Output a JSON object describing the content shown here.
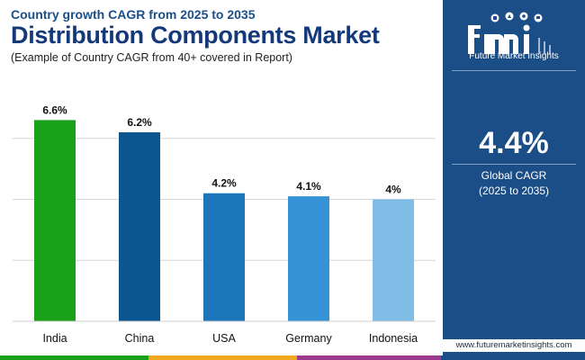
{
  "header": {
    "subtitle": "Country growth CAGR from 2025 to 2035",
    "title": "Distribution Components Market",
    "note": "(Example of Country CAGR from 40+ covered in Report)"
  },
  "chart_data": {
    "type": "bar",
    "categories": [
      "India",
      "China",
      "USA",
      "Germany",
      "Indonesia"
    ],
    "values": [
      6.6,
      6.2,
      4.2,
      4.1,
      4.0
    ],
    "data_labels": [
      "6.6%",
      "6.2%",
      "4.2%",
      "4.1%",
      "4%"
    ],
    "bar_colors": [
      "#1aa11a",
      "#0b5591",
      "#1b75b8",
      "#3592d5",
      "#80bde6"
    ],
    "title": "Distribution Components Market",
    "xlabel": "",
    "ylabel": "",
    "ylim": [
      0,
      8
    ],
    "grid": true,
    "unit": "%"
  },
  "sidebar": {
    "brand": "Future Market Insights",
    "brand_mark": "fmi",
    "cagr_value": "4.4%",
    "cagr_label": "Global CAGR",
    "cagr_period": "(2025 to 2035)",
    "url": "www.futuremarketinsights.com"
  },
  "colors": {
    "sidebar_bg": "#1b4d86",
    "title": "#14397a",
    "band": [
      "#1aa11a",
      "#f2a81d",
      "#9b3a8f",
      "#1b4d86"
    ]
  }
}
